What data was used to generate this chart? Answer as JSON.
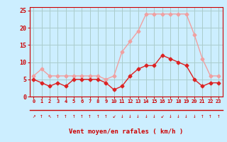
{
  "hours": [
    0,
    1,
    2,
    3,
    4,
    5,
    6,
    7,
    8,
    9,
    10,
    11,
    12,
    13,
    14,
    15,
    16,
    17,
    18,
    19,
    20,
    21,
    22,
    23
  ],
  "wind_avg": [
    5,
    4,
    3,
    4,
    3,
    5,
    5,
    5,
    5,
    4,
    2,
    3,
    6,
    8,
    9,
    9,
    12,
    11,
    10,
    9,
    5,
    3,
    4,
    4
  ],
  "wind_gust": [
    6,
    8,
    6,
    6,
    6,
    6,
    6,
    6,
    6,
    5,
    6,
    13,
    16,
    19,
    24,
    24,
    24,
    24,
    24,
    24,
    18,
    11,
    6,
    6
  ],
  "color_avg": "#dd2222",
  "color_gust": "#f0a0a0",
  "bg_color": "#cceeff",
  "grid_color": "#aacccc",
  "xlabel": "Vent moyen/en rafales ( km/h )",
  "ylim": [
    0,
    26
  ],
  "yticks": [
    0,
    5,
    10,
    15,
    20,
    25
  ],
  "tick_color": "#cc0000",
  "marker_size": 2.5,
  "line_width": 1.0,
  "arrows": [
    "↗",
    "↑",
    "↖",
    "↑",
    "↑",
    "↑",
    "↑",
    "↑",
    "↑",
    "↑",
    "↙",
    "↓",
    "↓",
    "↓",
    "↓",
    "↓",
    "↙",
    "↓",
    "↓",
    "↓",
    "↓",
    "↑",
    "↑",
    "↑"
  ]
}
